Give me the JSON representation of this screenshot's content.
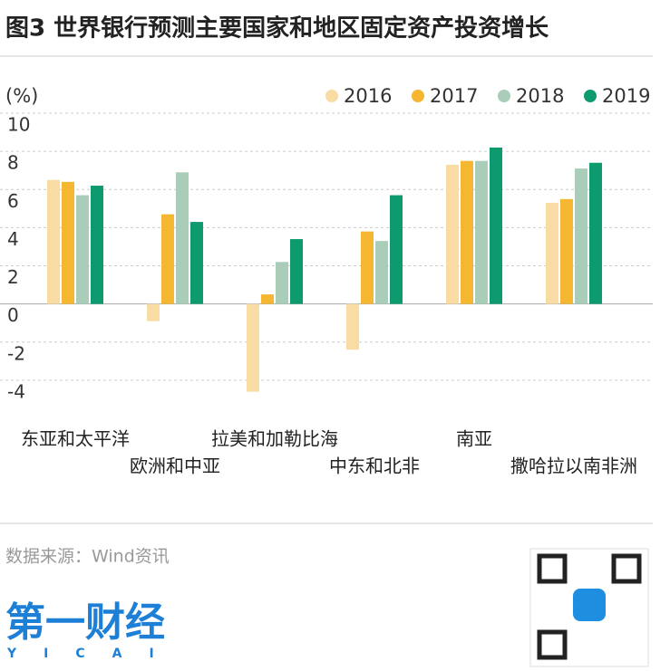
{
  "chart_data": {
    "type": "bar",
    "title": "图3 世界银行预测主要国家和地区固定资产投资增长",
    "y_label": "(%)",
    "categories": [
      "东亚和太平洋",
      "欧洲和中亚",
      "拉美和加勒比海",
      "中东和北非",
      "南亚",
      "撒哈拉以南非洲"
    ],
    "series": [
      {
        "name": "2016",
        "color": "#f8dca4",
        "values": [
          6.5,
          -0.9,
          -4.6,
          -2.4,
          7.3,
          5.3
        ]
      },
      {
        "name": "2017",
        "color": "#f5b731",
        "values": [
          6.4,
          4.7,
          0.5,
          3.8,
          7.5,
          5.5
        ]
      },
      {
        "name": "2018",
        "color": "#a9cdb9",
        "values": [
          5.7,
          6.9,
          2.2,
          3.3,
          7.5,
          7.1
        ]
      },
      {
        "name": "2019",
        "color": "#0e9a6f",
        "values": [
          6.2,
          4.3,
          3.4,
          5.7,
          8.2,
          7.4
        ]
      }
    ],
    "ylim": [
      -5,
      10
    ],
    "yticks": [
      -4,
      -2,
      0,
      2,
      4,
      6,
      8,
      10
    ],
    "grid": true,
    "source": "数据来源：Wind资讯",
    "logo": "第一财经",
    "logo_sub": "YICAI"
  }
}
